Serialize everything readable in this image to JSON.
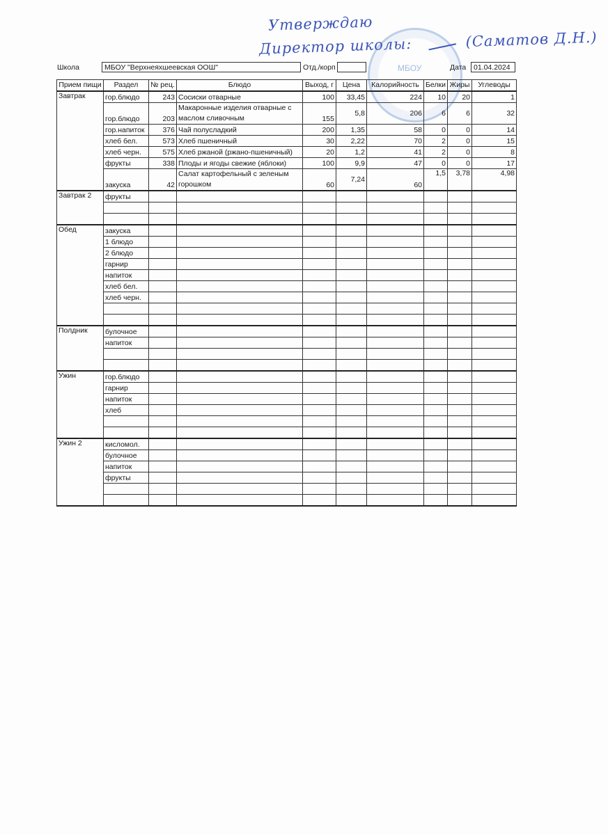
{
  "approval": {
    "line1": "Утверждаю",
    "line2": "Директор школы: ",
    "signature": "[подпись]",
    "name": "(Саматов Д.Н.)",
    "stamp_text": "МБОУ"
  },
  "header": {
    "school_label": "Школа",
    "school_value": "МБОУ \"Верхнеяхшеевская ООШ\"",
    "dept_label": "Отд./корп",
    "dept_value": "",
    "date_label": "Дата",
    "date_value": "01.04.2024"
  },
  "columns": [
    "Прием пищи",
    "Раздел",
    "№ рец.",
    "Блюдо",
    "Выход, г",
    "Цена",
    "Калорийность",
    "Белки",
    "Жиры",
    "Углеводы"
  ],
  "meals": [
    {
      "name": "Завтрак",
      "rows": [
        {
          "section": "гор.блюдо",
          "recipe": "243",
          "dish": "Сосиски отварные",
          "yield": "100",
          "price": "33,45",
          "kcal": "224",
          "protein": "10",
          "fat": "20",
          "carbs": "1"
        },
        {
          "section": "гор.блюдо",
          "recipe": "203",
          "dish": "Макаронные изделия отварные с маслом сливочным",
          "yield": "155",
          "price": "5,8",
          "kcal": "206",
          "protein": "6",
          "fat": "6",
          "carbs": "32",
          "double": true
        },
        {
          "section": "гор.напиток",
          "recipe": "376",
          "dish": "Чай полусладкий",
          "yield": "200",
          "price": "1,35",
          "kcal": "58",
          "protein": "0",
          "fat": "0",
          "carbs": "14"
        },
        {
          "section": "хлеб бел.",
          "recipe": "573",
          "dish": "Хлеб пшеничный",
          "yield": "30",
          "price": "2,22",
          "kcal": "70",
          "protein": "2",
          "fat": "0",
          "carbs": "15"
        },
        {
          "section": "хлеб черн.",
          "recipe": "575",
          "dish": "Хлеб ржаной (ржано-пшеничный)",
          "yield": "20",
          "price": "1,2",
          "kcal": "41",
          "protein": "2",
          "fat": "0",
          "carbs": "8"
        },
        {
          "section": "фрукты",
          "recipe": "338",
          "dish": "Плоды и ягоды свежие (яблоки)",
          "yield": "100",
          "price": "9,9",
          "kcal": "47",
          "protein": "0",
          "fat": "0",
          "carbs": "17"
        },
        {
          "section": "закуска",
          "recipe": "42",
          "dish": "Салат картофельный с зеленым горошком",
          "yield": "60",
          "price": "7,24",
          "kcal": "60",
          "protein": "1,5",
          "fat": "3,78",
          "carbs": "4,98",
          "double": true,
          "nutr_top": true
        }
      ]
    },
    {
      "name": "Завтрак 2",
      "rows": [
        {
          "section": "фрукты"
        },
        {},
        {}
      ]
    },
    {
      "name": "Обед",
      "rows": [
        {
          "section": "закуска"
        },
        {
          "section": "1 блюдо"
        },
        {
          "section": "2 блюдо"
        },
        {
          "section": "гарнир"
        },
        {
          "section": "напиток"
        },
        {
          "section": "хлеб бел."
        },
        {
          "section": "хлеб черн."
        },
        {},
        {}
      ]
    },
    {
      "name": "Полдник",
      "rows": [
        {
          "section": "булочное"
        },
        {
          "section": "напиток"
        },
        {},
        {}
      ]
    },
    {
      "name": "Ужин",
      "rows": [
        {
          "section": "гор.блюдо"
        },
        {
          "section": "гарнир"
        },
        {
          "section": "напиток"
        },
        {
          "section": "хлеб"
        },
        {},
        {}
      ]
    },
    {
      "name": "Ужин 2",
      "rows": [
        {
          "section": "кисломол."
        },
        {
          "section": "булочное"
        },
        {
          "section": "напиток"
        },
        {
          "section": "фрукты"
        },
        {},
        {}
      ]
    }
  ]
}
